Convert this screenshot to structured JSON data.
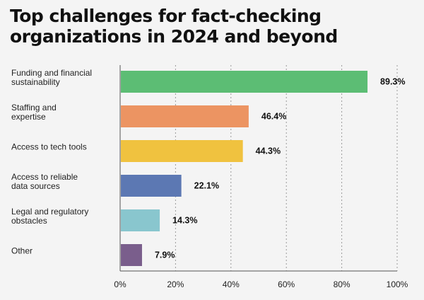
{
  "chart_data": {
    "type": "bar",
    "orientation": "horizontal",
    "title": "Top challenges for fact-checking organizations in 2024 and beyond",
    "categories": [
      [
        "Funding and financial",
        "sustainability"
      ],
      [
        "Staffing and",
        "expertise"
      ],
      [
        "Access to tech tools"
      ],
      [
        "Access to reliable",
        "data sources"
      ],
      [
        "Legal and regulatory",
        "obstacles"
      ],
      [
        "Other"
      ]
    ],
    "values": [
      89.3,
      46.4,
      44.3,
      22.1,
      14.3,
      7.9
    ],
    "value_labels": [
      "89.3%",
      "46.4%",
      "44.3%",
      "22.1%",
      "14.3%",
      "7.9%"
    ],
    "colors": [
      "#5cbd74",
      "#ec9462",
      "#f0c23f",
      "#5c78b3",
      "#89c6ce",
      "#7a5e8c"
    ],
    "xlim": [
      0,
      100
    ],
    "xticks": [
      0,
      20,
      40,
      60,
      80,
      100
    ],
    "xtick_labels": [
      "0%",
      "20%",
      "40%",
      "60%",
      "80%",
      "100%"
    ],
    "grid": "vertical-dashed",
    "xlabel": "",
    "ylabel": ""
  }
}
